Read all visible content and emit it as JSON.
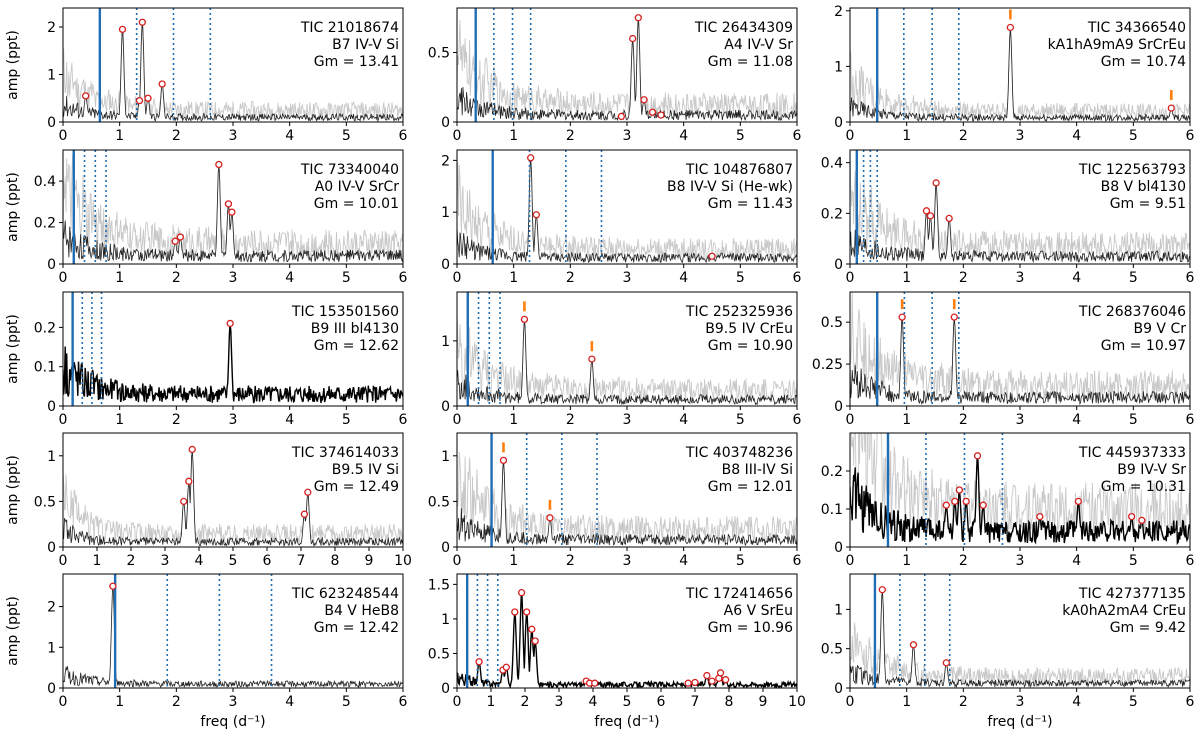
{
  "figure": {
    "xlabel": "freq (d⁻¹)",
    "ylabel": "amp (ppt)",
    "colors": {
      "trace": "#222222",
      "ghost": "#c8c8c8",
      "vline": "#1f6db5",
      "peak_edge": "#d62020",
      "mark": "#ff7f0e"
    }
  },
  "chart_data": [
    {
      "type": "line",
      "title": "TIC 21018674",
      "line2": "B7 IV-V Si",
      "gm": "Gm = 13.41",
      "xlim": [
        0,
        6
      ],
      "ylim": [
        0,
        2.4
      ],
      "xticks": [
        0,
        1,
        2,
        3,
        4,
        5,
        6
      ],
      "yticks": [
        0,
        1,
        2
      ],
      "ylabel": "amp (ppt)",
      "xlabel": "",
      "base": 0.1,
      "ghost": true,
      "dark": false,
      "solid": 0.65,
      "dotted": [
        1.3,
        1.95,
        2.6
      ],
      "peaks": [
        [
          0.4,
          0.55
        ],
        [
          1.05,
          1.95
        ],
        [
          1.35,
          0.45
        ],
        [
          1.4,
          2.1
        ],
        [
          1.5,
          0.5
        ],
        [
          1.75,
          0.8
        ]
      ],
      "marks": []
    },
    {
      "type": "line",
      "title": "TIC 26434309",
      "line2": "A4 IV-V Sr",
      "gm": "Gm = 11.08",
      "xlim": [
        0,
        6
      ],
      "ylim": [
        0,
        0.82
      ],
      "xticks": [
        0,
        1,
        2,
        3,
        4,
        5,
        6
      ],
      "yticks": [
        0,
        0.5
      ],
      "ylabel": "",
      "xlabel": "",
      "base": 0.05,
      "ghost": true,
      "dark": false,
      "solid": 0.33,
      "dotted": [
        0.65,
        0.98,
        1.3
      ],
      "peaks": [
        [
          2.9,
          0.04
        ],
        [
          3.1,
          0.6
        ],
        [
          3.2,
          0.75
        ],
        [
          3.3,
          0.16
        ],
        [
          3.45,
          0.07
        ],
        [
          3.6,
          0.05
        ]
      ],
      "marks": []
    },
    {
      "type": "line",
      "title": "TIC 34366540",
      "line2": "kA1hA9mA9 SrCrEu",
      "gm": "Gm = 10.74",
      "xlim": [
        0,
        6
      ],
      "ylim": [
        0,
        2.05
      ],
      "xticks": [
        0,
        1,
        2,
        3,
        4,
        5,
        6
      ],
      "yticks": [
        0,
        1,
        2
      ],
      "ylabel": "",
      "xlabel": "",
      "base": 0.08,
      "ghost": true,
      "dark": false,
      "solid": 0.48,
      "dotted": [
        0.95,
        1.45,
        1.92
      ],
      "peaks": [
        [
          2.83,
          1.7
        ],
        [
          5.67,
          0.25
        ]
      ],
      "marks": [
        [
          2.83,
          1.7
        ],
        [
          5.67,
          0.25
        ]
      ]
    },
    {
      "type": "line",
      "title": "TIC 73340040",
      "line2": "A0 IV-V SrCr",
      "gm": "Gm = 10.01",
      "xlim": [
        0,
        6
      ],
      "ylim": [
        0,
        0.55
      ],
      "xticks": [
        0,
        1,
        2,
        3,
        4,
        5,
        6
      ],
      "yticks": [
        0,
        0.2,
        0.4
      ],
      "ylabel": "amp (ppt)",
      "xlabel": "",
      "base": 0.04,
      "ghost": true,
      "dark": false,
      "solid": 0.19,
      "dotted": [
        0.38,
        0.57,
        0.76
      ],
      "peaks": [
        [
          1.98,
          0.11
        ],
        [
          2.07,
          0.13
        ],
        [
          2.75,
          0.48
        ],
        [
          2.92,
          0.29
        ],
        [
          2.98,
          0.25
        ]
      ],
      "marks": []
    },
    {
      "type": "line",
      "title": "TIC 104876807",
      "line2": "B8 IV-V Si  (He-wk)",
      "gm": "Gm = 11.43",
      "xlim": [
        0,
        6
      ],
      "ylim": [
        0,
        2.2
      ],
      "xticks": [
        0,
        1,
        2,
        3,
        4,
        5,
        6
      ],
      "yticks": [
        0,
        1,
        2
      ],
      "ylabel": "",
      "xlabel": "",
      "base": 0.12,
      "ghost": true,
      "dark": false,
      "solid": 0.63,
      "dotted": [
        1.28,
        1.92,
        2.55
      ],
      "peaks": [
        [
          1.3,
          2.05
        ],
        [
          1.4,
          0.95
        ],
        [
          4.5,
          0.15
        ]
      ],
      "marks": []
    },
    {
      "type": "line",
      "title": "TIC 122563793",
      "line2": "B8 V  bl4130",
      "gm": "Gm = 9.51",
      "xlim": [
        0,
        6
      ],
      "ylim": [
        0,
        0.45
      ],
      "xticks": [
        0,
        1,
        2,
        3,
        4,
        5,
        6
      ],
      "yticks": [
        0,
        0.2,
        0.4
      ],
      "ylabel": "",
      "xlabel": "",
      "base": 0.03,
      "ghost": true,
      "dark": false,
      "solid": 0.12,
      "dotted": [
        0.24,
        0.36,
        0.48
      ],
      "peaks": [
        [
          1.35,
          0.21
        ],
        [
          1.42,
          0.19
        ],
        [
          1.52,
          0.32
        ],
        [
          1.75,
          0.18
        ]
      ],
      "marks": []
    },
    {
      "type": "line",
      "title": "TIC 153501560",
      "line2": "B9 III  bl4130",
      "gm": "Gm = 12.62",
      "xlim": [
        0,
        6
      ],
      "ylim": [
        0,
        0.29
      ],
      "xticks": [
        0,
        1,
        2,
        3,
        4,
        5,
        6
      ],
      "yticks": [
        0,
        0.1,
        0.2
      ],
      "ylabel": "amp (ppt)",
      "xlabel": "",
      "base": 0.03,
      "ghost": false,
      "dark": true,
      "solid": 0.17,
      "dotted": [
        0.34,
        0.51,
        0.68
      ],
      "peaks": [
        [
          2.95,
          0.21
        ]
      ],
      "marks": []
    },
    {
      "type": "line",
      "title": "TIC 252325936",
      "line2": "B9.5 IV CrEu",
      "gm": "Gm = 10.90",
      "xlim": [
        0,
        6
      ],
      "ylim": [
        0,
        1.75
      ],
      "xticks": [
        0,
        1,
        2,
        3,
        4,
        5,
        6
      ],
      "yticks": [
        0,
        1
      ],
      "ylabel": "",
      "xlabel": "",
      "base": 0.1,
      "ghost": true,
      "dark": false,
      "solid": 0.19,
      "dotted": [
        0.38,
        0.57,
        0.76
      ],
      "peaks": [
        [
          1.19,
          1.33
        ],
        [
          2.38,
          0.72
        ]
      ],
      "marks": [
        [
          1.19,
          1.33
        ],
        [
          2.38,
          0.72
        ]
      ]
    },
    {
      "type": "line",
      "title": "TIC 268376046",
      "line2": "B9 V Cr",
      "gm": "Gm = 10.97",
      "xlim": [
        0,
        6
      ],
      "ylim": [
        0,
        0.68
      ],
      "xticks": [
        0,
        1,
        2,
        3,
        4,
        5,
        6
      ],
      "yticks": [
        0,
        0.25,
        0.5
      ],
      "ylabel": "",
      "xlabel": "",
      "base": 0.05,
      "ghost": true,
      "dark": false,
      "solid": 0.48,
      "dotted": [
        0.96,
        1.45,
        1.92
      ],
      "peaks": [
        [
          0.92,
          0.53
        ],
        [
          1.84,
          0.53
        ]
      ],
      "marks": [
        [
          0.92,
          0.53
        ],
        [
          1.84,
          0.53
        ]
      ]
    },
    {
      "type": "line",
      "title": "TIC 374614033",
      "line2": "B9.5 IV Si",
      "gm": "Gm = 12.49",
      "xlim": [
        0,
        10
      ],
      "ylim": [
        0,
        1.25
      ],
      "xticks": [
        0,
        1,
        2,
        3,
        4,
        5,
        6,
        7,
        8,
        9,
        10
      ],
      "yticks": [
        0,
        0.5,
        1
      ],
      "ylabel": "amp (ppt)",
      "xlabel": "",
      "base": 0.06,
      "ghost": true,
      "dark": false,
      "solid": null,
      "dotted": [],
      "peaks": [
        [
          3.55,
          0.5
        ],
        [
          3.7,
          0.72
        ],
        [
          3.8,
          1.07
        ],
        [
          7.1,
          0.36
        ],
        [
          7.2,
          0.6
        ]
      ],
      "marks": []
    },
    {
      "type": "line",
      "title": "TIC 403748236",
      "line2": "B8 III-IV Si",
      "gm": "Gm = 12.01",
      "xlim": [
        0,
        6
      ],
      "ylim": [
        0,
        1.25
      ],
      "xticks": [
        0,
        1,
        2,
        3,
        4,
        5,
        6
      ],
      "yticks": [
        0,
        0.5,
        1
      ],
      "ylabel": "",
      "xlabel": "",
      "base": 0.08,
      "ghost": true,
      "dark": false,
      "solid": 0.61,
      "dotted": [
        1.23,
        1.85,
        2.47
      ],
      "peaks": [
        [
          0.82,
          0.95
        ],
        [
          1.64,
          0.32
        ]
      ],
      "marks": [
        [
          0.82,
          0.95
        ],
        [
          1.64,
          0.32
        ]
      ]
    },
    {
      "type": "line",
      "title": "TIC 445937333",
      "line2": "B9 IV-V Sr",
      "gm": "Gm = 10.31",
      "xlim": [
        0,
        6
      ],
      "ylim": [
        0,
        0.3
      ],
      "xticks": [
        0,
        1,
        2,
        3,
        4,
        5,
        6
      ],
      "yticks": [
        0,
        0.1,
        0.2
      ],
      "ylabel": "",
      "xlabel": "",
      "base": 0.04,
      "ghost": true,
      "dark": true,
      "solid": 0.67,
      "dotted": [
        1.34,
        2.02,
        2.69
      ],
      "peaks": [
        [
          1.7,
          0.11
        ],
        [
          1.85,
          0.12
        ],
        [
          1.93,
          0.15
        ],
        [
          2.05,
          0.12
        ],
        [
          2.25,
          0.24
        ],
        [
          2.35,
          0.11
        ],
        [
          3.35,
          0.08
        ],
        [
          4.03,
          0.12
        ],
        [
          4.97,
          0.08
        ],
        [
          5.15,
          0.07
        ]
      ],
      "marks": []
    },
    {
      "type": "line",
      "title": "TIC 623248544",
      "line2": "B4 V HeB8",
      "gm": "Gm = 12.42",
      "xlim": [
        0,
        6
      ],
      "ylim": [
        0,
        2.8
      ],
      "xticks": [
        0,
        1,
        2,
        3,
        4,
        5,
        6
      ],
      "yticks": [
        0,
        1,
        2
      ],
      "ylabel": "amp (ppt)",
      "xlabel": "freq (d⁻¹)",
      "base": 0.1,
      "ghost": false,
      "dark": false,
      "solid": 0.92,
      "dotted": [
        1.84,
        2.76,
        3.68
      ],
      "peaks": [
        [
          0.88,
          2.5
        ]
      ],
      "marks": []
    },
    {
      "type": "line",
      "title": "TIC 172414656",
      "line2": "A6 V SrEu",
      "gm": "Gm = 10.96",
      "xlim": [
        0,
        10
      ],
      "ylim": [
        0,
        1.65
      ],
      "xticks": [
        0,
        1,
        2,
        3,
        4,
        5,
        6,
        7,
        8,
        9,
        10
      ],
      "yticks": [
        0,
        0.5,
        1,
        1.5
      ],
      "ylabel": "",
      "xlabel": "freq (d⁻¹)",
      "base": 0.05,
      "ghost": false,
      "dark": true,
      "solid": 0.3,
      "dotted": [
        0.6,
        0.9,
        1.2
      ],
      "peaks": [
        [
          0.65,
          0.38
        ],
        [
          1.35,
          0.26
        ],
        [
          1.45,
          0.3
        ],
        [
          1.7,
          1.1
        ],
        [
          1.9,
          1.38
        ],
        [
          2.05,
          1.1
        ],
        [
          2.2,
          0.85
        ],
        [
          2.3,
          0.68
        ],
        [
          3.8,
          0.1
        ],
        [
          3.9,
          0.07
        ],
        [
          4.05,
          0.07
        ],
        [
          6.8,
          0.07
        ],
        [
          7.0,
          0.08
        ],
        [
          7.35,
          0.18
        ],
        [
          7.5,
          0.1
        ],
        [
          7.7,
          0.14
        ],
        [
          7.75,
          0.22
        ],
        [
          7.9,
          0.12
        ]
      ],
      "marks": []
    },
    {
      "type": "line",
      "title": "TIC 427377135",
      "line2": "kA0hA2mA4 CrEu",
      "gm": "Gm = 9.42",
      "xlim": [
        0,
        6
      ],
      "ylim": [
        0,
        1.45
      ],
      "xticks": [
        0,
        1,
        2,
        3,
        4,
        5,
        6
      ],
      "yticks": [
        0,
        0.5,
        1
      ],
      "ylabel": "",
      "xlabel": "freq (d⁻¹)",
      "base": 0.06,
      "ghost": true,
      "dark": false,
      "solid": 0.44,
      "dotted": [
        0.88,
        1.32,
        1.76
      ],
      "peaks": [
        [
          0.57,
          1.25
        ],
        [
          1.12,
          0.55
        ],
        [
          1.7,
          0.32
        ]
      ],
      "marks": []
    }
  ]
}
